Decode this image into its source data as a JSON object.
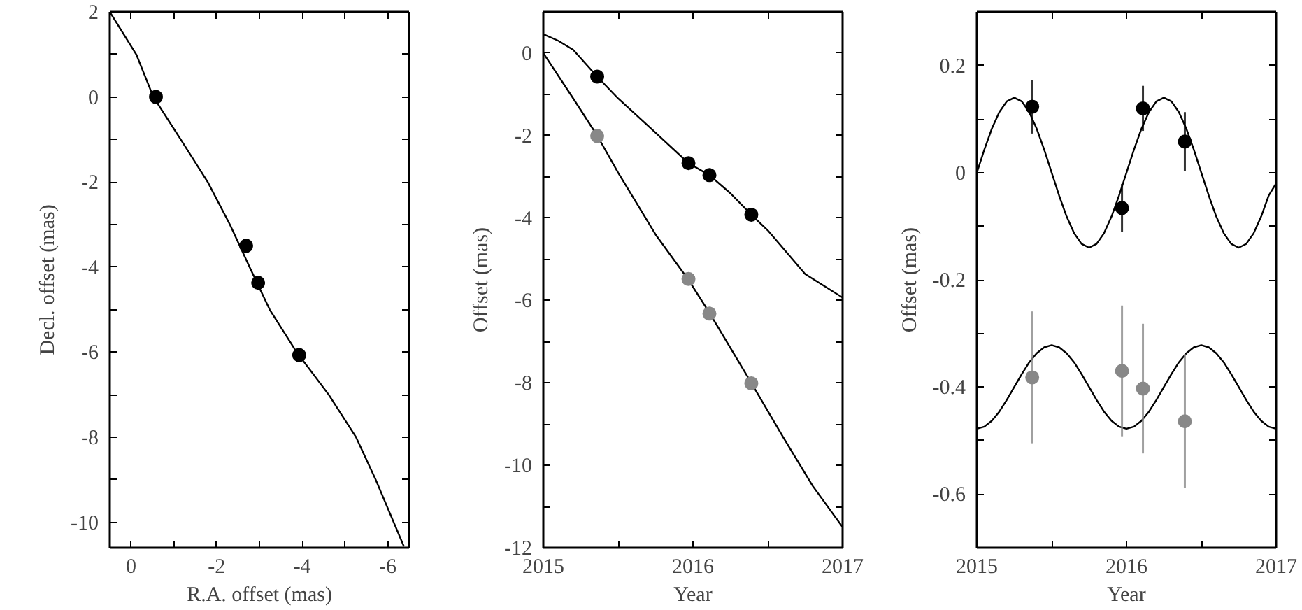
{
  "chart_data": [
    {
      "type": "scatter",
      "xlabel": "R.A. offset (mas)",
      "ylabel": "Decl. offset (mas)",
      "xlim": [
        0.5,
        -6.5
      ],
      "ylim": [
        -10.6,
        2
      ],
      "xticks": [
        0,
        {
          "value": -1,
          "label": null
        },
        -2,
        {
          "value": -3,
          "label": null
        },
        -4,
        {
          "value": -5,
          "label": null
        },
        -6
      ],
      "yticks": [
        2,
        {
          "value": 1,
          "label": null
        },
        0,
        {
          "value": -1,
          "label": null
        },
        -2,
        {
          "value": -3,
          "label": null
        },
        -4,
        {
          "value": -5,
          "label": null
        },
        -6,
        {
          "value": -7,
          "label": null
        },
        -8,
        {
          "value": -9,
          "label": null
        },
        -10
      ],
      "series": [
        {
          "type": "line",
          "color": "#000000",
          "x": [
            0.5,
            -0.12,
            -0.52,
            -1.16,
            -1.79,
            -2.31,
            -2.77,
            -3.24,
            -3.87,
            -4.62,
            -5.26,
            -5.72,
            -6.38
          ],
          "values": [
            2,
            1,
            0,
            -1,
            -2,
            -3,
            -4,
            -5,
            -6,
            -7,
            -8,
            -9,
            -10.57
          ]
        },
        {
          "color": "#000000",
          "marker": "circle",
          "x": [
            -0.58,
            -2.69,
            -2.97,
            -3.93
          ],
          "values": [
            0,
            -3.5,
            -4.37,
            -6.07
          ]
        }
      ]
    },
    {
      "type": "scatter",
      "xlabel": "Year",
      "ylabel": "Offset (mas)",
      "xlim": [
        2015,
        2017
      ],
      "ylim": [
        -12,
        1
      ],
      "xticks": [
        2015,
        {
          "value": 2015.5,
          "label": null
        },
        2016,
        {
          "value": 2016.5,
          "label": null
        },
        2017
      ],
      "yticks": [
        0,
        {
          "value": -1,
          "label": null
        },
        -2,
        {
          "value": -3,
          "label": null
        },
        -4,
        {
          "value": -5,
          "label": null
        },
        -6,
        {
          "value": -7,
          "label": null
        },
        -8,
        {
          "value": -9,
          "label": null
        },
        -10,
        {
          "value": -11,
          "label": null
        },
        -12
      ],
      "series": [
        {
          "type": "line",
          "color": "#000000",
          "x": [
            2015,
            2015.1,
            2015.2,
            2015.36,
            2015.5,
            2015.75,
            2015.97,
            2016.11,
            2016.25,
            2016.39,
            2016.5,
            2016.75,
            2017
          ],
          "values": [
            0.46,
            0.3,
            0.08,
            -0.57,
            -1.1,
            -1.93,
            -2.67,
            -2.96,
            -3.4,
            -3.92,
            -4.3,
            -5.36,
            -5.93
          ]
        },
        {
          "type": "line",
          "color": "#000000",
          "x": [
            2015,
            2015.2,
            2015.36,
            2015.5,
            2015.75,
            2015.97,
            2016.11,
            2016.39,
            2016.6,
            2016.8,
            2017
          ],
          "values": [
            0,
            -1.1,
            -2.0,
            -2.9,
            -4.4,
            -5.5,
            -6.3,
            -8.0,
            -9.3,
            -10.5,
            -11.5
          ]
        },
        {
          "color": "#000000",
          "marker": "circle",
          "x": [
            2015.36,
            2015.97,
            2016.11,
            2016.39
          ],
          "values": [
            -0.57,
            -2.67,
            -2.96,
            -3.92
          ]
        },
        {
          "color": "#888888",
          "marker": "circle",
          "x": [
            2015.36,
            2015.97,
            2016.11,
            2016.39
          ],
          "values": [
            -2.01,
            -5.48,
            -6.32,
            -8.01
          ]
        }
      ]
    },
    {
      "type": "scatter",
      "xlabel": "Year",
      "ylabel": "Offset (mas)",
      "xlim": [
        2015,
        2017
      ],
      "ylim": [
        -0.7,
        0.3
      ],
      "xticks": [
        2015,
        {
          "value": 2015.5,
          "label": null
        },
        2016,
        {
          "value": 2016.5,
          "label": null
        },
        2017
      ],
      "yticks": [
        0.2,
        {
          "value": 0.1,
          "label": null
        },
        0,
        {
          "value": -0.1,
          "label": null
        },
        -0.2,
        {
          "value": -0.3,
          "label": null
        },
        -0.4,
        {
          "value": -0.5,
          "label": null
        },
        -0.6
      ],
      "series": [
        {
          "type": "line",
          "color": "#000000",
          "x": [
            2015,
            2015.05,
            2015.1,
            2015.15,
            2015.2,
            2015.25,
            2015.3,
            2015.35,
            2015.4,
            2015.45,
            2015.5,
            2015.55,
            2015.6,
            2015.65,
            2015.7,
            2015.75,
            2015.8,
            2015.85,
            2015.9,
            2015.95,
            2016,
            2016.05,
            2016.1,
            2016.15,
            2016.2,
            2016.25,
            2016.3,
            2016.35,
            2016.4,
            2016.45,
            2016.5,
            2016.55,
            2016.6,
            2016.65,
            2016.7,
            2016.75,
            2016.8,
            2016.85,
            2016.9,
            2016.95,
            2017
          ],
          "values": [
            0,
            0.043,
            0.082,
            0.113,
            0.133,
            0.14,
            0.133,
            0.113,
            0.082,
            0.043,
            0,
            -0.043,
            -0.082,
            -0.113,
            -0.133,
            -0.14,
            -0.133,
            -0.113,
            -0.082,
            -0.043,
            0,
            0.043,
            0.082,
            0.113,
            0.133,
            0.14,
            0.133,
            0.113,
            0.082,
            0.043,
            0,
            -0.043,
            -0.082,
            -0.113,
            -0.133,
            -0.14,
            -0.133,
            -0.113,
            -0.082,
            -0.043,
            -0.02
          ]
        },
        {
          "type": "line",
          "color": "#000000",
          "x": [
            2015,
            2015.05,
            2015.1,
            2015.15,
            2015.2,
            2015.25,
            2015.3,
            2015.35,
            2015.4,
            2015.45,
            2015.5,
            2015.55,
            2015.6,
            2015.65,
            2015.7,
            2015.75,
            2015.8,
            2015.85,
            2015.9,
            2015.95,
            2016,
            2016.05,
            2016.1,
            2016.15,
            2016.2,
            2016.25,
            2016.3,
            2016.35,
            2016.4,
            2016.45,
            2016.5,
            2016.55,
            2016.6,
            2016.65,
            2016.7,
            2016.75,
            2016.8,
            2016.85,
            2016.9,
            2016.95,
            2017
          ],
          "values": [
            -0.478,
            -0.474,
            -0.463,
            -0.446,
            -0.424,
            -0.4,
            -0.376,
            -0.354,
            -0.337,
            -0.326,
            -0.322,
            -0.326,
            -0.337,
            -0.354,
            -0.376,
            -0.4,
            -0.424,
            -0.446,
            -0.463,
            -0.474,
            -0.478,
            -0.474,
            -0.463,
            -0.446,
            -0.424,
            -0.4,
            -0.376,
            -0.354,
            -0.337,
            -0.326,
            -0.322,
            -0.326,
            -0.337,
            -0.354,
            -0.376,
            -0.4,
            -0.424,
            -0.446,
            -0.463,
            -0.474,
            -0.478
          ]
        },
        {
          "color": "#000000",
          "marker": "circle",
          "x": [
            2015.37,
            2015.97,
            2016.11,
            2016.39
          ],
          "values": [
            0.123,
            -0.066,
            0.12,
            0.058
          ],
          "errors": [
            0.05,
            0.045,
            0.042,
            0.055
          ]
        },
        {
          "color": "#888888",
          "marker": "circle",
          "x": [
            2015.37,
            2015.97,
            2016.11,
            2016.39
          ],
          "values": [
            -0.382,
            -0.37,
            -0.403,
            -0.464
          ],
          "errors": [
            0.123,
            0.122,
            0.121,
            0.125
          ]
        }
      ]
    }
  ]
}
